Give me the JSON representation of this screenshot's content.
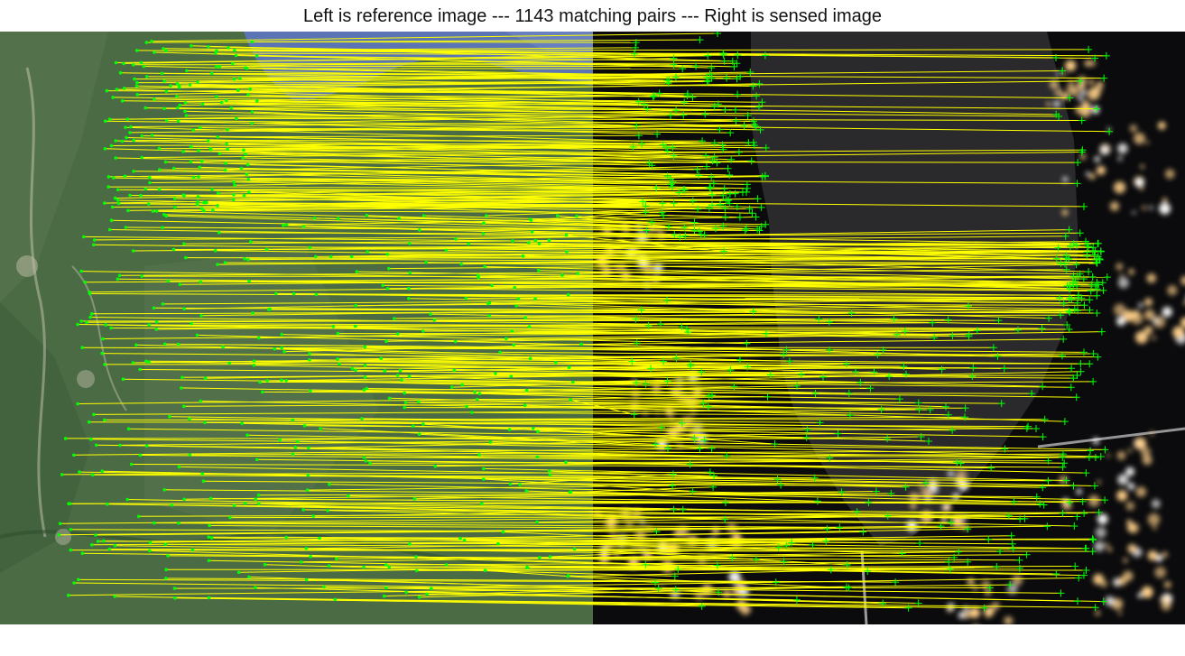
{
  "figure": {
    "title": "Left is reference image --- 1143 matching pairs --- Right is sensed image",
    "colors": {
      "match_line": "#ffff00",
      "keypoint": "#00ff00",
      "terrain_green": "#4b6b45",
      "lake_blue": "#5b74b4",
      "night_black": "#0b0b0d",
      "lake_dark": "#2a2a2c",
      "city_lights": "#ffd089"
    },
    "left_panel": {
      "image_kind": "daytime satellite image"
    },
    "right_panel": {
      "image_kind": "nighttime lights image"
    }
  }
}
